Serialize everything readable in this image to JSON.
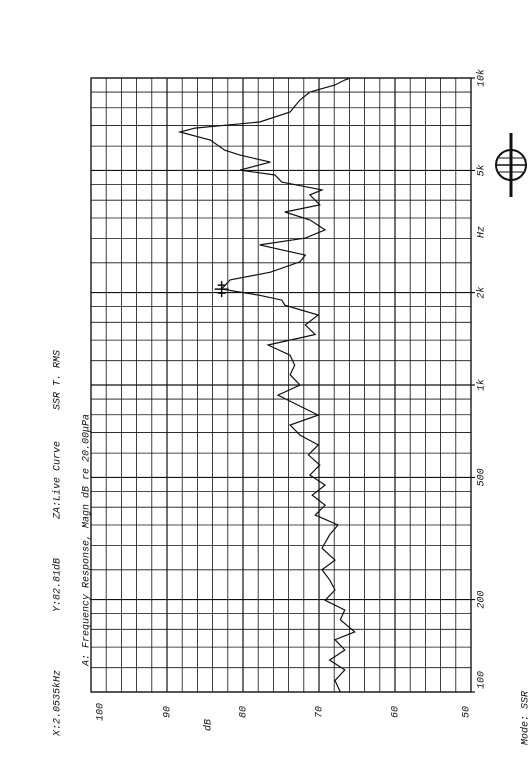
{
  "chart_data": {
    "type": "line",
    "header": [
      "X:2.0535kHz",
      "Y:82.81dB",
      "ZA:Live Curve",
      "SSR T. RMS"
    ],
    "title": "A: Frequency Response, Magn dB re 20.00μPa",
    "y_label": "dB",
    "x_label": "Hz",
    "mode": "Mode: SSR",
    "log_x": true,
    "xlim": [
      100,
      10000
    ],
    "ylim": [
      50,
      100
    ],
    "xticks": [
      100,
      200,
      500,
      {
        "value": 1000,
        "label": "1k"
      },
      {
        "value": 2000,
        "label": "2k"
      },
      {
        "value": 5000,
        "label": "5k"
      },
      {
        "value": 10000,
        "label": "10k"
      }
    ],
    "yticks": [
      100,
      90,
      80,
      70,
      60,
      50
    ],
    "x_grid": [
      120,
      140,
      160,
      180,
      250,
      300,
      350,
      400,
      450,
      600,
      700,
      800,
      900,
      1200,
      1400,
      1600,
      1800,
      2500,
      3000,
      3500,
      4000,
      4500,
      6000,
      7000,
      8000,
      9000
    ],
    "y_grid": [
      52,
      54,
      56,
      58,
      62,
      64,
      66,
      68,
      72,
      74,
      76,
      78,
      82,
      84,
      86,
      88,
      92,
      94,
      96,
      98
    ],
    "color": "#111111",
    "cursor": {
      "x": 2053.5,
      "y": 82.81
    },
    "x": [
      100,
      109,
      118,
      127,
      137,
      148,
      157,
      172,
      185,
      199,
      215,
      232,
      250,
      269,
      294,
      325,
      350,
      377,
      406,
      438,
      472,
      509,
      549,
      592,
      638,
      687,
      741,
      798,
      861,
      927,
      1000,
      1080,
      1160,
      1250,
      1350,
      1460,
      1570,
      1690,
      1820,
      1890,
      1960,
      2053.5,
      2200,
      2330,
      2520,
      2650,
      2860,
      3010,
      3200,
      3450,
      3660,
      3860,
      4160,
      4320,
      4580,
      4830,
      5010,
      5320,
      5610,
      5820,
      6280,
      6670,
      6870,
      7190,
      7750,
      8480,
      9000,
      9490,
      9850,
      10000
    ],
    "values": [
      67.2,
      67.9,
      66.6,
      68.6,
      66.6,
      67.9,
      65.3,
      67.2,
      66.6,
      69.2,
      67.9,
      68.6,
      69.6,
      67.9,
      69.6,
      68.6,
      67.5,
      70.5,
      69.2,
      70.9,
      69.2,
      71.2,
      69.9,
      71.4,
      70.1,
      72.5,
      73.8,
      70.1,
      72.8,
      75.4,
      72.5,
      73.8,
      73.2,
      73.8,
      76.7,
      70.5,
      71.8,
      70.1,
      74.5,
      74.9,
      77.8,
      82.81,
      81.7,
      76.4,
      72.5,
      71.8,
      77.8,
      71.8,
      69.2,
      71.2,
      74.5,
      69.9,
      71.2,
      69.6,
      74.9,
      75.8,
      80.4,
      76.4,
      80.4,
      82.4,
      84.3,
      88.3,
      86.3,
      77.8,
      73.8,
      72.5,
      71.2,
      67.9,
      66.6,
      65.9
    ]
  }
}
